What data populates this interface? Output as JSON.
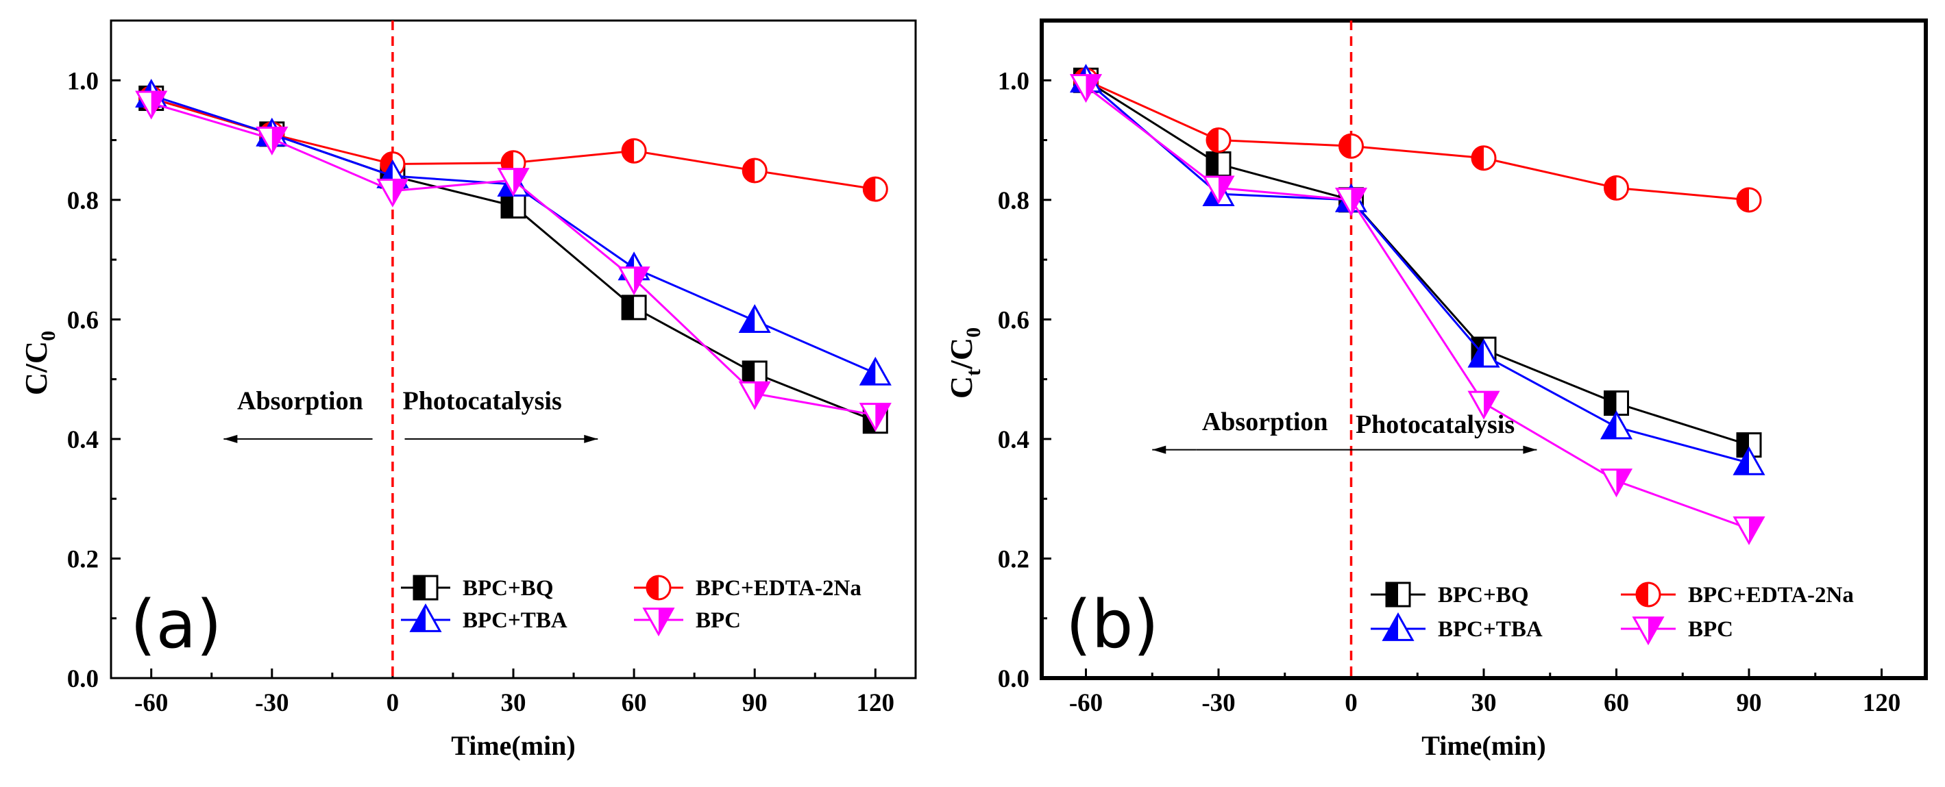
{
  "chart_data": [
    {
      "type": "line",
      "panel_label": "(a)",
      "xlabel": "Time(min)",
      "ylabel_main": "C/C",
      "ylabel_sub": "0",
      "ylabel_sub2": "",
      "xlim": [
        -70,
        130
      ],
      "ylim": [
        0.0,
        1.1
      ],
      "xticks": [
        "-60",
        "-30",
        "0",
        "30",
        "60",
        "90",
        "120"
      ],
      "xtick_values": [
        -60,
        -30,
        0,
        30,
        60,
        90,
        120
      ],
      "yticks": [
        "0.0",
        "0.2",
        "0.4",
        "0.6",
        "0.8",
        "1.0"
      ],
      "ytick_values": [
        0.0,
        0.2,
        0.4,
        0.6,
        0.8,
        1.0
      ],
      "divider_x": 0,
      "annotations": [
        {
          "text": "Absorption",
          "x": -23,
          "y": 0.45,
          "anchor": "middle"
        },
        {
          "text": "Photocatalysis",
          "x": 2.5,
          "y": 0.45,
          "anchor": "start"
        }
      ],
      "arrows": [
        {
          "from": -5,
          "to": -42,
          "y": 0.4
        },
        {
          "from": 3,
          "to": 51,
          "y": 0.4
        }
      ],
      "legend_position": "bottom-right",
      "x": [
        -60,
        -30,
        0,
        30,
        60,
        90,
        120
      ],
      "series": [
        {
          "name": "BPC+BQ",
          "color": "#000000",
          "marker": "square-half",
          "values": [
            0.97,
            0.91,
            0.84,
            0.79,
            0.62,
            0.51,
            0.43
          ]
        },
        {
          "name": "BPC+EDTA-2Na",
          "color": "#ff0000",
          "marker": "circle-half",
          "values": [
            0.97,
            0.91,
            0.86,
            0.862,
            0.882,
            0.849,
            0.818
          ]
        },
        {
          "name": "BPC+TBA",
          "color": "#0000ff",
          "marker": "triangle-half",
          "values": [
            0.975,
            0.91,
            0.84,
            0.826,
            0.686,
            0.598,
            0.51
          ]
        },
        {
          "name": "BPC",
          "color": "#ff00ff",
          "marker": "triangle-down-half",
          "values": [
            0.962,
            0.902,
            0.815,
            0.833,
            0.668,
            0.476,
            0.44
          ]
        }
      ]
    },
    {
      "type": "line",
      "panel_label": "(b)",
      "xlabel": "Time(min)",
      "ylabel_main": "C",
      "ylabel_sub": "t",
      "ylabel_sub2": "0",
      "ylabel_mid": "/C",
      "xlim": [
        -70,
        130
      ],
      "ylim": [
        0.0,
        1.1
      ],
      "xticks": [
        "-60",
        "-30",
        "0",
        "30",
        "60",
        "90",
        "120"
      ],
      "xtick_values": [
        -60,
        -30,
        0,
        30,
        60,
        90,
        120
      ],
      "yticks": [
        "0.0",
        "0.2",
        "0.4",
        "0.6",
        "0.8",
        "1.0"
      ],
      "ytick_values": [
        0.0,
        0.2,
        0.4,
        0.6,
        0.8,
        1.0
      ],
      "divider_x": 0,
      "annotations": [
        {
          "text": "Absorption",
          "x": -19.5,
          "y": 0.415,
          "anchor": "middle"
        },
        {
          "text": "Photocatalysis",
          "x": 1,
          "y": 0.41,
          "anchor": "start"
        }
      ],
      "arrows": [
        {
          "from": -35,
          "to": -45,
          "y": 0.382
        },
        {
          "from": -35,
          "to": 42,
          "y": 0.382
        }
      ],
      "legend_position": "bottom-right",
      "x": [
        -60,
        -30,
        0,
        30,
        60,
        90
      ],
      "series": [
        {
          "name": "BPC+BQ",
          "color": "#000000",
          "marker": "square-half",
          "values": [
            1.0,
            0.86,
            0.8,
            0.55,
            0.46,
            0.39
          ]
        },
        {
          "name": "BPC+EDTA-2Na",
          "color": "#ff0000",
          "marker": "circle-half",
          "values": [
            1.0,
            0.9,
            0.89,
            0.87,
            0.82,
            0.8
          ]
        },
        {
          "name": "BPC+TBA",
          "color": "#0000ff",
          "marker": "triangle-half",
          "values": [
            1.0,
            0.81,
            0.8,
            0.54,
            0.42,
            0.36
          ]
        },
        {
          "name": "BPC",
          "color": "#ff00ff",
          "marker": "triangle-down-half",
          "values": [
            0.99,
            0.82,
            0.8,
            0.46,
            0.33,
            0.25
          ]
        }
      ]
    }
  ]
}
